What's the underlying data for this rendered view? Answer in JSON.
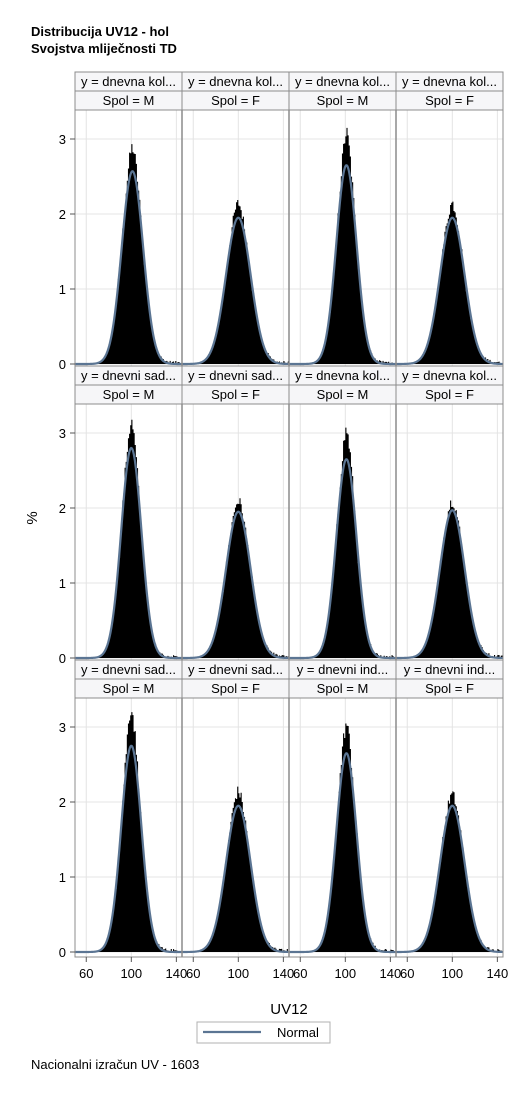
{
  "titles": [
    "Distribucija UV12 - hol",
    "Svojstva mliječnosti TD"
  ],
  "footer": "Nacionalni izračun UV - 1603",
  "colors": {
    "bar": "#000000",
    "normal_curve": "#5b7593",
    "header_bg": "#f6f6f8",
    "border": "#8c8c8c",
    "grid": "#e4e4e4"
  },
  "chart_data": {
    "type": "histogram-panel",
    "xlabel": "UV12",
    "ylabel": "%",
    "xlim": [
      50,
      145
    ],
    "ylim": [
      0,
      3.4
    ],
    "x_ticks": [
      60,
      100,
      140
    ],
    "y_ticks": [
      0,
      1,
      2,
      3
    ],
    "legend": {
      "placement": "bottom",
      "entries": [
        "Normal"
      ]
    },
    "rows": [
      [
        {
          "header1": "y = dnevna kol...",
          "header2": "Spol = M",
          "peak": 2.9,
          "normal_peak": 2.57,
          "mean": 101,
          "sd": 9.5
        },
        {
          "header1": "y = dnevna kol...",
          "header2": "Spol = F",
          "peak": 2.15,
          "normal_peak": 1.95,
          "mean": 100,
          "sd": 11
        },
        {
          "header1": "y = dnevna kol...",
          "header2": "Spol = M",
          "peak": 3.1,
          "normal_peak": 2.65,
          "mean": 101,
          "sd": 9
        },
        {
          "header1": "y = dnevna kol...",
          "header2": "Spol = F",
          "peak": 2.15,
          "normal_peak": 1.95,
          "mean": 100,
          "sd": 11
        }
      ],
      [
        {
          "header1": "y = dnevni sad...",
          "header2": "Spol = M",
          "peak": 3.15,
          "normal_peak": 2.8,
          "mean": 100,
          "sd": 9
        },
        {
          "header1": "y = dnevni sad...",
          "header2": "Spol = F",
          "peak": 2.1,
          "normal_peak": 1.95,
          "mean": 100,
          "sd": 11
        },
        {
          "header1": "y = dnevna kol...",
          "header2": "Spol = M",
          "peak": 3.05,
          "normal_peak": 2.65,
          "mean": 101,
          "sd": 9
        },
        {
          "header1": "y = dnevna kol...",
          "header2": "Spol = F",
          "peak": 2.1,
          "normal_peak": 1.97,
          "mean": 100,
          "sd": 11
        }
      ],
      [
        {
          "header1": "y = dnevni sad...",
          "header2": "Spol = M",
          "peak": 3.28,
          "normal_peak": 2.75,
          "mean": 100,
          "sd": 9
        },
        {
          "header1": "y = dnevni sad...",
          "header2": "Spol = F",
          "peak": 2.15,
          "normal_peak": 1.95,
          "mean": 100,
          "sd": 11
        },
        {
          "header1": "y = dnevni ind...",
          "header2": "Spol = M",
          "peak": 3.05,
          "normal_peak": 2.65,
          "mean": 101,
          "sd": 9
        },
        {
          "header1": "y = dnevni ind...",
          "header2": "Spol = F",
          "peak": 2.1,
          "normal_peak": 1.95,
          "mean": 100,
          "sd": 11
        }
      ]
    ]
  }
}
